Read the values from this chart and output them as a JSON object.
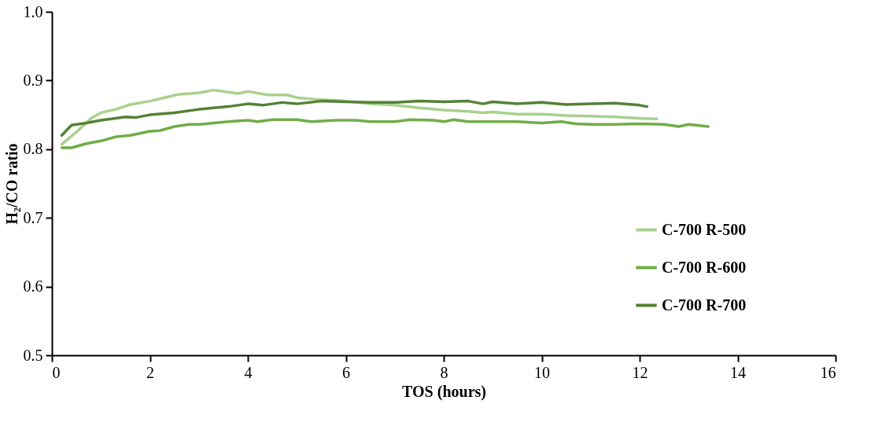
{
  "chart_data": {
    "type": "line",
    "xlabel": "TOS (hours)",
    "ylabel": "H₂/CO ratio",
    "xlim": [
      0,
      16
    ],
    "xticks": [
      0,
      2,
      4,
      6,
      8,
      10,
      12,
      14,
      16
    ],
    "ylim": [
      0.5,
      1.0
    ],
    "yticks": [
      0.5,
      0.6,
      0.7,
      0.8,
      0.9,
      {
        "value": 1.0,
        "label": "1.0"
      }
    ],
    "grid": false,
    "legend": "right",
    "marker": "none",
    "line_style": "solid",
    "series": [
      {
        "name": "C-700 R-500",
        "color": "#a9d18e",
        "x": [
          0.2,
          0.5,
          0.8,
          1.0,
          1.3,
          1.6,
          2.0,
          2.3,
          2.6,
          3.0,
          3.3,
          3.6,
          3.8,
          4.0,
          4.4,
          4.8,
          5.0,
          5.5,
          6.0,
          6.5,
          7.0,
          7.5,
          8.0,
          8.5,
          8.8,
          9.0,
          9.5,
          10.0,
          10.5,
          11.0,
          11.5,
          12.0,
          12.35
        ],
        "values": [
          0.807,
          0.825,
          0.845,
          0.853,
          0.858,
          0.865,
          0.87,
          0.875,
          0.88,
          0.882,
          0.886,
          0.883,
          0.881,
          0.884,
          0.879,
          0.879,
          0.875,
          0.872,
          0.87,
          0.866,
          0.864,
          0.86,
          0.857,
          0.855,
          0.853,
          0.854,
          0.851,
          0.851,
          0.849,
          0.848,
          0.847,
          0.845,
          0.844
        ]
      },
      {
        "name": "C-700 R-600",
        "color": "#70ad47",
        "x": [
          0.2,
          0.4,
          0.7,
          1.0,
          1.3,
          1.6,
          2.0,
          2.2,
          2.5,
          2.8,
          3.0,
          3.3,
          3.6,
          4.0,
          4.2,
          4.5,
          5.0,
          5.3,
          5.8,
          6.2,
          6.5,
          7.0,
          7.3,
          7.8,
          8.0,
          8.2,
          8.5,
          9.0,
          9.5,
          10.0,
          10.4,
          10.7,
          11.0,
          11.5,
          12.0,
          12.5,
          12.8,
          13.0,
          13.4
        ],
        "values": [
          0.802,
          0.802,
          0.808,
          0.812,
          0.818,
          0.82,
          0.826,
          0.827,
          0.833,
          0.836,
          0.836,
          0.838,
          0.84,
          0.842,
          0.84,
          0.843,
          0.843,
          0.84,
          0.842,
          0.842,
          0.84,
          0.84,
          0.843,
          0.842,
          0.84,
          0.843,
          0.84,
          0.84,
          0.84,
          0.838,
          0.84,
          0.837,
          0.836,
          0.836,
          0.837,
          0.836,
          0.833,
          0.836,
          0.833
        ]
      },
      {
        "name": "C-700 R-700",
        "color": "#548235",
        "x": [
          0.2,
          0.4,
          0.7,
          1.0,
          1.3,
          1.5,
          1.7,
          2.0,
          2.5,
          3.0,
          3.3,
          3.6,
          4.0,
          4.3,
          4.7,
          5.0,
          5.5,
          6.0,
          6.5,
          7.0,
          7.5,
          8.0,
          8.5,
          8.8,
          9.0,
          9.5,
          10.0,
          10.5,
          11.0,
          11.5,
          12.0,
          12.15
        ],
        "values": [
          0.82,
          0.835,
          0.838,
          0.842,
          0.845,
          0.847,
          0.846,
          0.85,
          0.853,
          0.858,
          0.86,
          0.862,
          0.866,
          0.864,
          0.868,
          0.866,
          0.87,
          0.869,
          0.868,
          0.868,
          0.87,
          0.869,
          0.87,
          0.866,
          0.869,
          0.866,
          0.868,
          0.865,
          0.866,
          0.867,
          0.864,
          0.862
        ]
      }
    ]
  }
}
